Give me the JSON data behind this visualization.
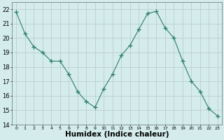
{
  "x": [
    0,
    1,
    2,
    3,
    4,
    5,
    6,
    7,
    8,
    9,
    10,
    11,
    12,
    13,
    14,
    15,
    16,
    17,
    18,
    19,
    20,
    21,
    22,
    23
  ],
  "y": [
    21.8,
    20.3,
    19.4,
    19.0,
    18.4,
    18.4,
    17.5,
    16.3,
    15.6,
    15.2,
    16.5,
    17.5,
    18.8,
    19.5,
    20.6,
    21.7,
    21.85,
    20.7,
    20.0,
    18.4,
    17.0,
    16.3,
    15.1,
    14.6
  ],
  "line_color": "#2e7d6e",
  "marker": "+",
  "marker_size": 4,
  "bg_color": "#d4ecec",
  "grid_color_major": "#b8c8c8",
  "grid_color_minor": "#c8d8d8",
  "xlabel": "Humidex (Indice chaleur)",
  "ylim": [
    14,
    22.5
  ],
  "yticks": [
    14,
    15,
    16,
    17,
    18,
    19,
    20,
    21,
    22
  ],
  "xlim": [
    -0.5,
    23.5
  ],
  "xticks": [
    0,
    1,
    2,
    3,
    4,
    5,
    6,
    7,
    8,
    9,
    10,
    11,
    12,
    13,
    14,
    15,
    16,
    17,
    18,
    19,
    20,
    21,
    22,
    23
  ]
}
